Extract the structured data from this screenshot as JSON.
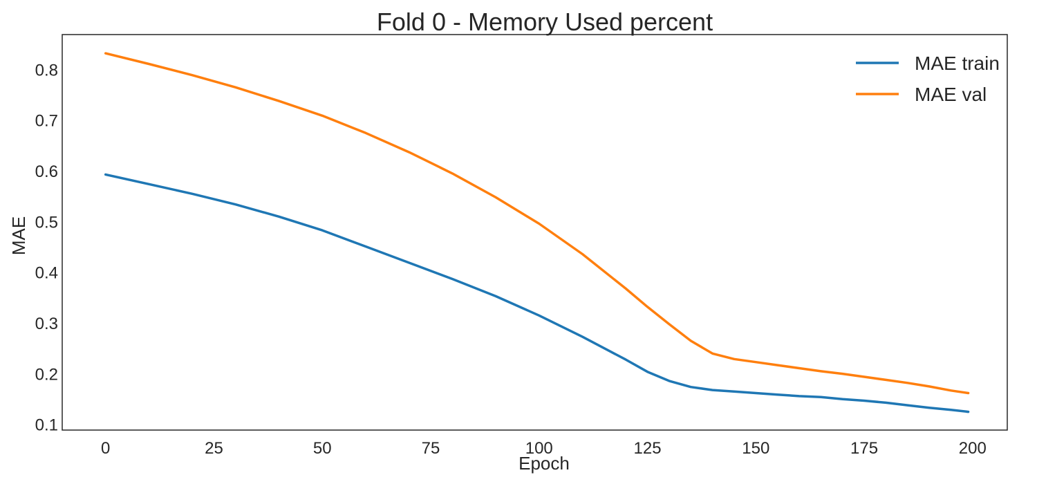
{
  "chart_data": {
    "type": "line",
    "title": "Fold 0 - Memory Used percent",
    "xlabel": "Epoch",
    "ylabel": "MAE",
    "xlim": [
      -10,
      208
    ],
    "ylim": [
      0.09,
      0.87
    ],
    "xticks": [
      0,
      25,
      50,
      75,
      100,
      125,
      150,
      175,
      200
    ],
    "yticks": [
      0.1,
      0.2,
      0.3,
      0.4,
      0.5,
      0.6,
      0.7,
      0.8
    ],
    "grid": false,
    "legend_position": "top-right",
    "series": [
      {
        "name": "MAE train",
        "color": "#1f77b4",
        "x": [
          0,
          10,
          20,
          30,
          40,
          50,
          60,
          70,
          80,
          90,
          100,
          110,
          120,
          125,
          130,
          135,
          140,
          145,
          150,
          155,
          160,
          165,
          170,
          175,
          180,
          185,
          190,
          195,
          199
        ],
        "y": [
          0.594,
          0.575,
          0.556,
          0.535,
          0.511,
          0.484,
          0.452,
          0.42,
          0.388,
          0.354,
          0.316,
          0.274,
          0.229,
          0.205,
          0.187,
          0.175,
          0.169,
          0.166,
          0.163,
          0.16,
          0.157,
          0.155,
          0.151,
          0.148,
          0.144,
          0.139,
          0.134,
          0.13,
          0.126
        ]
      },
      {
        "name": "MAE val",
        "color": "#ff7f0e",
        "x": [
          0,
          10,
          20,
          30,
          40,
          50,
          60,
          70,
          80,
          90,
          100,
          110,
          120,
          125,
          130,
          135,
          140,
          145,
          150,
          155,
          160,
          165,
          170,
          175,
          180,
          185,
          190,
          195,
          199
        ],
        "y": [
          0.833,
          0.812,
          0.79,
          0.766,
          0.739,
          0.71,
          0.676,
          0.638,
          0.596,
          0.549,
          0.497,
          0.437,
          0.369,
          0.333,
          0.299,
          0.266,
          0.241,
          0.23,
          0.224,
          0.218,
          0.212,
          0.206,
          0.201,
          0.195,
          0.189,
          0.183,
          0.176,
          0.168,
          0.163
        ]
      }
    ]
  }
}
